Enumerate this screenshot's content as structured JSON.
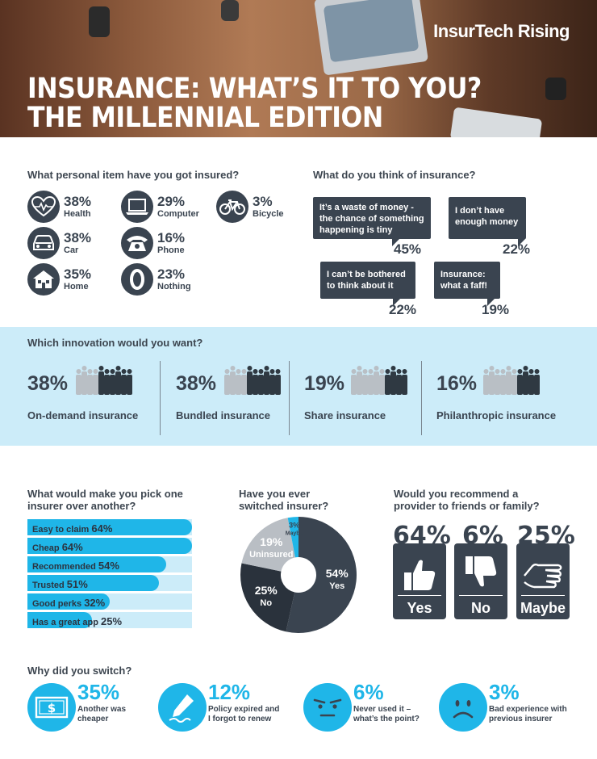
{
  "header": {
    "brand": "InsurTech Rising",
    "title_line1": "INSURANCE: WHAT’S IT TO YOU?",
    "title_line2": "THE MILLENNIAL EDITION"
  },
  "personal_items": {
    "question": "What personal item have you got insured?",
    "items": [
      {
        "pct": "38%",
        "label": "Health",
        "icon": "heart-icon"
      },
      {
        "pct": "38%",
        "label": "Car",
        "icon": "car-icon"
      },
      {
        "pct": "35%",
        "label": "Home",
        "icon": "house-icon"
      },
      {
        "pct": "29%",
        "label": "Computer",
        "icon": "laptop-icon"
      },
      {
        "pct": "16%",
        "label": "Phone",
        "icon": "phone-icon"
      },
      {
        "pct": "23%",
        "label": "Nothing",
        "icon": "zero-icon"
      },
      {
        "pct": "3%",
        "label": "Bicycle",
        "icon": "bicycle-icon"
      }
    ]
  },
  "think": {
    "question": "What do you think of insurance?",
    "bubbles": [
      {
        "text": "It’s a waste of money - the chance of something happening is tiny",
        "pct": "45%"
      },
      {
        "text": "I don’t have enough money",
        "pct": "22%"
      },
      {
        "text": "I can’t be bothered to think about it",
        "pct": "22%"
      },
      {
        "text": "Insurance: what a faff!",
        "pct": "19%"
      }
    ]
  },
  "innovation": {
    "question": "Which innovation would you want?",
    "items": [
      {
        "pct": "38%",
        "label": "On-demand insurance",
        "value": 38
      },
      {
        "pct": "38%",
        "label": "Bundled insurance",
        "value": 38
      },
      {
        "pct": "19%",
        "label": "Share insurance",
        "value": 19
      },
      {
        "pct": "16%",
        "label": "Philanthropic insurance",
        "value": 16
      }
    ]
  },
  "pick": {
    "question_line1": "What would make you pick one",
    "question_line2": "insurer over another?",
    "bars": [
      {
        "label": "Easy to claim",
        "pct": "64%",
        "value": 64
      },
      {
        "label": "Cheap",
        "pct": "64%",
        "value": 64
      },
      {
        "label": "Recommended",
        "pct": "54%",
        "value": 54
      },
      {
        "label": "Trusted",
        "pct": "51%",
        "value": 51
      },
      {
        "label": "Good perks",
        "pct": "32%",
        "value": 32
      },
      {
        "label": "Has a great app",
        "pct": "25%",
        "value": 25
      }
    ]
  },
  "switched": {
    "question_line1": "Have you ever",
    "question_line2": "switched insurer?",
    "slices": [
      {
        "label": "Yes",
        "pct": "54%",
        "value": 54,
        "color": "#3a4450",
        "text_color": "#ffffff"
      },
      {
        "label": "No",
        "pct": "25%",
        "value": 25,
        "color": "#2a323c",
        "text_color": "#ffffff"
      },
      {
        "label": "Uninsured",
        "pct": "19%",
        "value": 19,
        "color": "#b9bec4",
        "text_color": "#ffffff"
      },
      {
        "label": "Maybe",
        "pct": "3%",
        "value": 3,
        "color": "#1fb6e8",
        "text_color": "#3a4450"
      }
    ]
  },
  "recommend": {
    "question_line1": "Would you recommend a",
    "question_line2": "provider to friends or family?",
    "cards": [
      {
        "pct": "64%",
        "label": "Yes",
        "icon": "thumbs-up-icon"
      },
      {
        "pct": "6%",
        "label": "No",
        "icon": "thumbs-down-icon"
      },
      {
        "pct": "25%",
        "label": "Maybe",
        "icon": "flat-hand-icon"
      }
    ]
  },
  "why": {
    "question": "Why did you switch?",
    "items": [
      {
        "pct": "35%",
        "line1": "Another was",
        "line2": "cheaper",
        "icon": "dollar-bill-icon"
      },
      {
        "pct": "12%",
        "line1": "Policy expired and",
        "line2": "I forgot to renew",
        "icon": "pen-icon"
      },
      {
        "pct": "6%",
        "line1": "Never used it –",
        "line2": "what’s the point?",
        "icon": "annoyed-face-icon"
      },
      {
        "pct": "3%",
        "line1": "Bad experience with",
        "line2": "previous insurer",
        "icon": "sad-face-icon"
      }
    ]
  }
}
